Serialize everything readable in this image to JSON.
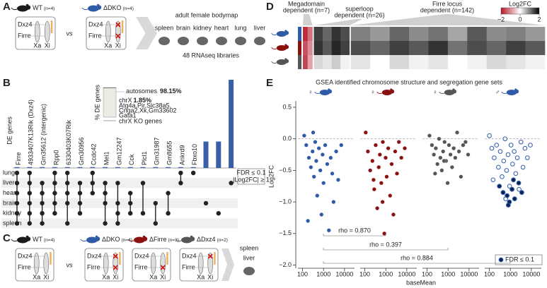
{
  "labels": [
    "A",
    "B",
    "C",
    "D",
    "E"
  ],
  "cell_labels": {
    "dxz4": "Dxz4",
    "firre": "Firre",
    "xa": "Xa",
    "xi": "Xi"
  },
  "panel_a": {
    "genotypes": [
      {
        "name": "WT",
        "n": "(n=4)",
        "color": "#1a1a1a",
        "deleted": []
      },
      {
        "name": "ΔDKO",
        "n": "(n=4)",
        "color": "#2e5aa8",
        "deleted": [
          "dxz4",
          "firre"
        ]
      }
    ],
    "vs": "vs",
    "title": "adult female bodymap",
    "tissues": [
      "spleen",
      "brain",
      "kidney",
      "heart",
      "lung",
      "liver"
    ],
    "note": "48 RNAseq libraries"
  },
  "panel_c": {
    "genotypes": [
      {
        "name": "WT",
        "n": "(n=4)",
        "color": "#1a1a1a",
        "deleted": []
      },
      {
        "name": "ΔDKO",
        "n": "(n=4)",
        "color": "#2e5aa8",
        "deleted": [
          "dxz4",
          "firre"
        ]
      },
      {
        "name": "ΔFirre",
        "n": "(n=3)",
        "color": "#8b1010",
        "deleted": [
          "firre"
        ]
      },
      {
        "name": "ΔDxz4",
        "n": "(n=2)",
        "color": "#555555",
        "deleted": [
          "dxz4"
        ]
      }
    ],
    "vs": "vs",
    "tissues": [
      "spleen",
      "liver"
    ]
  },
  "chart_data": [
    {
      "type": "upset",
      "y_label": "DE genes",
      "color": "#3a5ea8",
      "categories": [
        "Firre",
        "4933407K13Rik (Dxz4)",
        "Gm35612 (intergenic)",
        "Rpp0",
        "6330403K07Rik",
        "Gm30956",
        "Ccdc42",
        "Mei1",
        "Gm12247",
        "Cck",
        "Plcl1",
        "Gm31987",
        "Gm8655",
        "Ankrd9",
        "Fbxo10",
        null,
        null,
        null
      ],
      "values": [
        1,
        1,
        1,
        1,
        1,
        1,
        1,
        1,
        1,
        1,
        1,
        1,
        1,
        1,
        1,
        30,
        30,
        100
      ],
      "sets": [
        "lung",
        "liver",
        "heart",
        "brain",
        "kidney",
        "spleen"
      ],
      "membership": [
        [
          0,
          1,
          2,
          3,
          4,
          5
        ],
        [
          0,
          1,
          2,
          3,
          4,
          5
        ],
        [
          1,
          2,
          3,
          4,
          5
        ],
        [
          0,
          1,
          2,
          3,
          4
        ],
        [
          0,
          1,
          2,
          3,
          5
        ],
        [
          1,
          2,
          3,
          4
        ],
        [
          0,
          1,
          2
        ],
        [
          1,
          2,
          3,
          5
        ],
        [
          1,
          3,
          4,
          5
        ],
        [
          2,
          3,
          4
        ],
        [
          1,
          4
        ],
        [
          3,
          5
        ],
        [
          2,
          4
        ],
        [
          0,
          1
        ],
        [
          0
        ],
        [
          3
        ],
        [
          4
        ],
        [
          1
        ]
      ],
      "legend": [
        "FDR ≤ 0.1",
        "|Log2FC| ≥ 1"
      ],
      "inset": {
        "y_label": "% DE genes",
        "segments": [
          {
            "label": "autosomes",
            "value": 98.15,
            "value_label": "98.15%",
            "color": "#ecece4"
          },
          {
            "label": "chrX",
            "value": 1.85,
            "value_label": "1.85%",
            "color": "#8a8a8a"
          }
        ],
        "genes": [
          "Atg4a,Pir,Slc38a5,",
          "Cnga2,Xk,Gm33602",
          "Gata1"
        ],
        "ko_label": "chrX KO genes"
      }
    },
    {
      "type": "heatmap",
      "row_colors": [
        "#2e5aa8",
        "#8b1010",
        "#555555"
      ],
      "groups": [
        {
          "label": [
            "Megadomain",
            "dependent (n=7)"
          ],
          "n": 7,
          "values": [
            [
              -1.8,
              -1.2
            ],
            [
              -1.5,
              -1.0
            ],
            [
              -1.6,
              -0.8
            ]
          ]
        },
        {
          "label": [
            "superloop",
            "dependent (n=26)"
          ],
          "n": 26,
          "values": [
            [
              1.5,
              1.2,
              1.6,
              1.4
            ],
            [
              1.6,
              1.3,
              1.7,
              1.5
            ],
            [
              0.3,
              0.2,
              0.4,
              0.1
            ]
          ]
        },
        {
          "label": [
            "Firre locus",
            "dependent (n=142)"
          ],
          "n": 142,
          "values": [
            [
              1.0,
              0.8,
              1.2,
              0.9,
              1.1,
              0.7,
              1.3,
              0.9,
              1.0,
              0.8
            ],
            [
              1.4,
              1.2,
              1.5,
              1.3,
              1.6,
              1.1,
              1.4,
              1.2,
              1.5,
              1.3
            ],
            [
              0.2,
              0.0,
              0.3,
              0.1,
              0.2,
              0.0,
              0.1,
              0.3,
              0.2,
              0.1
            ]
          ]
        }
      ],
      "colorbar": {
        "title": "Log2FC",
        "clim": [
          -2,
          2
        ],
        "colors": [
          "#b2182b",
          "#ffffff",
          "#000000"
        ],
        "ticks": [
          {
            "value": -2,
            "label": "−2"
          },
          0,
          2
        ]
      }
    },
    {
      "type": "scatter",
      "title": "GSEA identified chromosome structure and segregation gene sets",
      "y_label": "Log2FC",
      "x_label": "baseMean",
      "xscale": "log",
      "legend_corner": "bottom-right",
      "ylim": [
        -2.05,
        0.6
      ],
      "yticks": [
        0.5,
        {
          "value": 0,
          "label": "0.0"
        },
        {
          "value": -0.5,
          "label": "−0.5"
        },
        {
          "value": -1,
          "label": "−1.0"
        },
        {
          "value": -1.5,
          "label": "−1.5"
        },
        {
          "value": -2,
          "label": "−2.0"
        }
      ],
      "panels": [
        {
          "sex": "♀",
          "mouse_color": "#2e5aa8",
          "xlim": [
            60,
            30000
          ],
          "xticks": [
            100,
            1000,
            10000
          ],
          "series": [
            {
              "color": "#2e5aa8",
              "marker": "filled",
              "x": [
                120,
                150,
                200,
                250,
                300,
                350,
                400,
                450,
                500,
                600,
                700,
                800,
                900,
                1000,
                1200,
                1500,
                1800,
                2200,
                2600,
                3000,
                4000,
                5000,
                7000,
                180,
                320
              ],
              "values": [
                0.05,
                -0.1,
                -0.3,
                -0.45,
                -0.2,
                -0.6,
                -0.05,
                -0.35,
                -0.9,
                -0.15,
                -0.5,
                -1.2,
                -0.25,
                -0.7,
                -0.1,
                -0.4,
                -1.45,
                -0.3,
                -0.55,
                -1.0,
                -0.2,
                -0.65,
                -0.1,
                -1.3,
                0.1
              ]
            }
          ]
        },
        {
          "sex": "♀",
          "mouse_color": "#8b1010",
          "xlim": [
            60,
            30000
          ],
          "xticks": [
            100,
            1000,
            10000
          ],
          "series": [
            {
              "color": "#8b1010",
              "marker": "filled",
              "x": [
                110,
                140,
                180,
                230,
                280,
                330,
                390,
                460,
                520,
                610,
                720,
                850,
                980,
                1100,
                1300,
                1600,
                1900,
                2300,
                2800,
                3400,
                4200,
                5500,
                8000,
                260,
                700
              ],
              "values": [
                0.1,
                -0.2,
                -0.5,
                -0.35,
                -0.8,
                -0.1,
                -1.1,
                -0.45,
                -0.25,
                -0.7,
                -0.05,
                -1.5,
                -0.3,
                -0.6,
                -0.15,
                -0.9,
                -0.4,
                -1.2,
                -0.2,
                -0.55,
                -0.05,
                -0.3,
                -0.15,
                -0.65,
                -1.0
              ]
            }
          ]
        },
        {
          "sex": "♀",
          "mouse_color": "#555555",
          "xlim": [
            60,
            30000
          ],
          "xticks": [
            100,
            1000,
            10000
          ],
          "series": [
            {
              "color": "#555555",
              "marker": "filled",
              "x": [
                130,
                170,
                210,
                260,
                310,
                370,
                430,
                500,
                580,
                680,
                800,
                950,
                1100,
                1300,
                1550,
                1850,
                2200,
                2700,
                3300,
                4100,
                5200,
                6800,
                9000,
                240,
                640
              ],
              "values": [
                0.05,
                -0.1,
                -0.25,
                -0.15,
                -0.4,
                0.0,
                -0.3,
                -0.5,
                -0.2,
                -0.05,
                -0.35,
                -0.7,
                -0.1,
                -0.25,
                -0.45,
                -0.15,
                -0.3,
                0.1,
                -0.2,
                -0.6,
                -0.1,
                -0.05,
                -0.25,
                -0.55,
                -0.35
              ]
            }
          ]
        },
        {
          "sex": "♂",
          "mouse_color": "#2e5aa8",
          "xlim": [
            60,
            30000
          ],
          "xticks": [
            100,
            1000,
            10000
          ],
          "series": [
            {
              "color": "#2e5aa8",
              "marker": "open",
              "x": [
                100,
                130,
                170,
                220,
                270,
                330,
                400,
                480,
                560,
                660,
                780,
                920,
                1080,
                1280,
                1520,
                1800,
                2150,
                2600,
                3200,
                4000,
                5000,
                6500,
                9000,
                150,
                600
              ],
              "values": [
                0.05,
                -0.15,
                -0.3,
                -0.1,
                -0.45,
                -0.2,
                -0.6,
                -0.35,
                0.0,
                -0.5,
                -0.25,
                -0.75,
                -0.1,
                -0.4,
                -0.2,
                -0.55,
                -0.3,
                -0.8,
                -0.05,
                -0.45,
                -0.15,
                -0.3,
                -0.1,
                -0.65,
                -0.95
              ]
            },
            {
              "name": "FDR ≤ 0.1",
              "color": "#2e5aa8",
              "marker": "ring",
              "x": [
                300,
                450,
                700,
                900,
                1200,
                1600,
                2500,
                3500,
                800,
                1400
              ],
              "values": [
                -0.75,
                -0.85,
                -0.9,
                -1.0,
                -0.8,
                -0.95,
                -0.7,
                -0.85,
                -1.05,
                -0.65
              ]
            }
          ]
        }
      ],
      "correlations": [
        {
          "label": "rho = 0.870",
          "panels": [
            0,
            1
          ]
        },
        {
          "label": "rho = 0.397",
          "panels": [
            0,
            2
          ]
        },
        {
          "label": "rho = 0.884",
          "panels": [
            0,
            3
          ]
        }
      ]
    }
  ]
}
